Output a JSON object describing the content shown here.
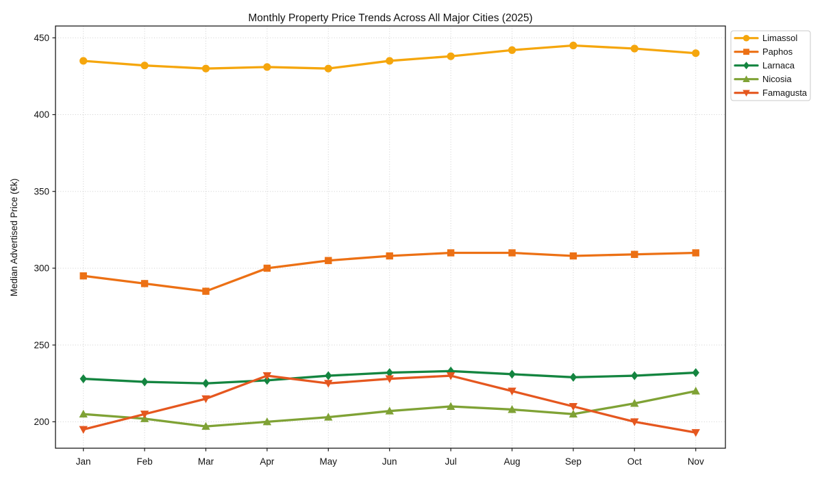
{
  "chart_data": {
    "type": "line",
    "title": "Monthly Property Price Trends Across All Major Cities (2025)",
    "xlabel": "",
    "ylabel": "Median Advertised Price (€k)",
    "categories": [
      "Jan",
      "Feb",
      "Mar",
      "Apr",
      "May",
      "Jun",
      "Jul",
      "Aug",
      "Sep",
      "Oct",
      "Nov"
    ],
    "yticks": [
      200,
      250,
      300,
      350,
      400,
      450
    ],
    "ylim": [
      182.8,
      457.7
    ],
    "grid": true,
    "legend_position": "upper right",
    "series": [
      {
        "name": "Limassol",
        "color": "#F5A60D",
        "marker": "circle",
        "values": [
          435,
          432,
          430,
          431,
          430,
          435,
          438,
          442,
          445,
          443,
          440
        ]
      },
      {
        "name": "Paphos",
        "color": "#EC7014",
        "marker": "square",
        "values": [
          295,
          290,
          285,
          300,
          305,
          308,
          310,
          310,
          308,
          309,
          310
        ]
      },
      {
        "name": "Larnaca",
        "color": "#148540",
        "marker": "diamond",
        "values": [
          228,
          226,
          225,
          227,
          230,
          232,
          233,
          231,
          229,
          230,
          232
        ]
      },
      {
        "name": "Nicosia",
        "color": "#7FA235",
        "marker": "triangle-up",
        "values": [
          205,
          202,
          197,
          200,
          203,
          207,
          210,
          208,
          205,
          212,
          220
        ]
      },
      {
        "name": "Famagusta",
        "color": "#E5571F",
        "marker": "triangle-down",
        "values": [
          195,
          205,
          215,
          230,
          225,
          228,
          230,
          220,
          210,
          200,
          193
        ]
      }
    ],
    "axis_text_color": "#111111",
    "grid_color": "#cdcdcd",
    "spine_color": "#1a1a1a",
    "legend_border_color": "#c9c9c9"
  }
}
